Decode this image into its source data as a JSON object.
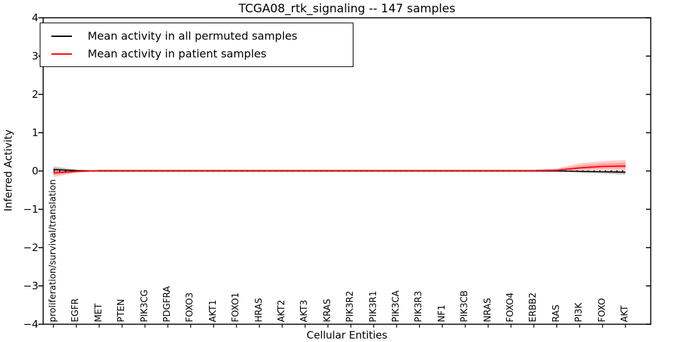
{
  "title": "TCGA08_rtk_signaling -- 147 samples",
  "axes": {
    "ylabel": "Inferred Activity",
    "xlabel": "Cellular Entities",
    "y_ticks": [
      "4",
      "3",
      "2",
      "1",
      "0",
      "−1",
      "−2",
      "−3",
      "−4"
    ]
  },
  "legend": {
    "entries": [
      {
        "label": "Mean activity in all permuted samples",
        "color": "#000000"
      },
      {
        "label": "Mean activity in patient samples",
        "color": "#ff0000"
      }
    ]
  },
  "chart_data": {
    "type": "line",
    "title": "TCGA08_rtk_signaling -- 147 samples",
    "xlabel": "Cellular Entities",
    "ylabel": "Inferred Activity",
    "ylim": [
      -4,
      4
    ],
    "grid": false,
    "legend_position": "upper left",
    "categories": [
      "proliferation/survival/translation",
      "EGFR",
      "MET",
      "PTEN",
      "PIK3CG",
      "PDGFRA",
      "FOXO3",
      "AKT1",
      "FOXO1",
      "HRAS",
      "AKT2",
      "AKT3",
      "KRAS",
      "PIK3R2",
      "PIK3R1",
      "PIK3CA",
      "PIK3R3",
      "NF1",
      "PIK3CB",
      "NRAS",
      "FOXO4",
      "ERBB2",
      "RAS",
      "PI3K",
      "FOXO",
      "AKT"
    ],
    "reference_line": {
      "y": 0,
      "style": "dotted",
      "color": "#000000"
    },
    "series": [
      {
        "name": "Mean activity in all permuted samples",
        "color": "#000000",
        "band_fill": "rgba(0,0,0,0.16)",
        "values": [
          0.04,
          0.01,
          0,
          0,
          0,
          0,
          0,
          0,
          0,
          0,
          0,
          0,
          0,
          0,
          0,
          0,
          0,
          0,
          0,
          0,
          0,
          0,
          0,
          -0.01,
          -0.02,
          -0.03
        ],
        "band_upper": [
          0.13,
          0.04,
          0.01,
          0.01,
          0.01,
          0.01,
          0.01,
          0.01,
          0.01,
          0.01,
          0.01,
          0.01,
          0.01,
          0.01,
          0.01,
          0.01,
          0.01,
          0.01,
          0.01,
          0.01,
          0.01,
          0.01,
          0.01,
          0.01,
          0.01,
          0.02
        ],
        "band_lower": [
          -0.02,
          -0.01,
          -0.01,
          -0.01,
          -0.01,
          -0.01,
          -0.01,
          -0.01,
          -0.01,
          -0.01,
          -0.01,
          -0.01,
          -0.01,
          -0.01,
          -0.01,
          -0.01,
          -0.01,
          -0.01,
          -0.01,
          -0.01,
          -0.01,
          -0.01,
          -0.02,
          -0.04,
          -0.07,
          -0.1
        ]
      },
      {
        "name": "Mean activity in patient samples",
        "color": "#ff0000",
        "band_fill": "rgba(255,0,0,0.20)",
        "values": [
          -0.05,
          -0.01,
          0.01,
          0.01,
          0.01,
          0.01,
          0.01,
          0.01,
          0.01,
          0.01,
          0.01,
          0.01,
          0.01,
          0.01,
          0.01,
          0.01,
          0.01,
          0.01,
          0.01,
          0.01,
          0.01,
          0.01,
          0.02,
          0.08,
          0.12,
          0.13
        ],
        "band_upper": [
          0.03,
          0.02,
          0.02,
          0.02,
          0.02,
          0.02,
          0.02,
          0.02,
          0.02,
          0.02,
          0.02,
          0.02,
          0.02,
          0.02,
          0.02,
          0.02,
          0.02,
          0.02,
          0.02,
          0.02,
          0.02,
          0.03,
          0.07,
          0.2,
          0.26,
          0.29
        ],
        "band_lower": [
          -0.16,
          -0.05,
          -0.01,
          -0.01,
          -0.01,
          -0.01,
          -0.01,
          -0.01,
          -0.01,
          -0.01,
          -0.01,
          -0.01,
          -0.01,
          -0.01,
          -0.01,
          -0.01,
          -0.01,
          -0.01,
          -0.01,
          -0.01,
          -0.01,
          -0.01,
          0.0,
          0.01,
          0.02,
          0.02
        ]
      }
    ]
  }
}
